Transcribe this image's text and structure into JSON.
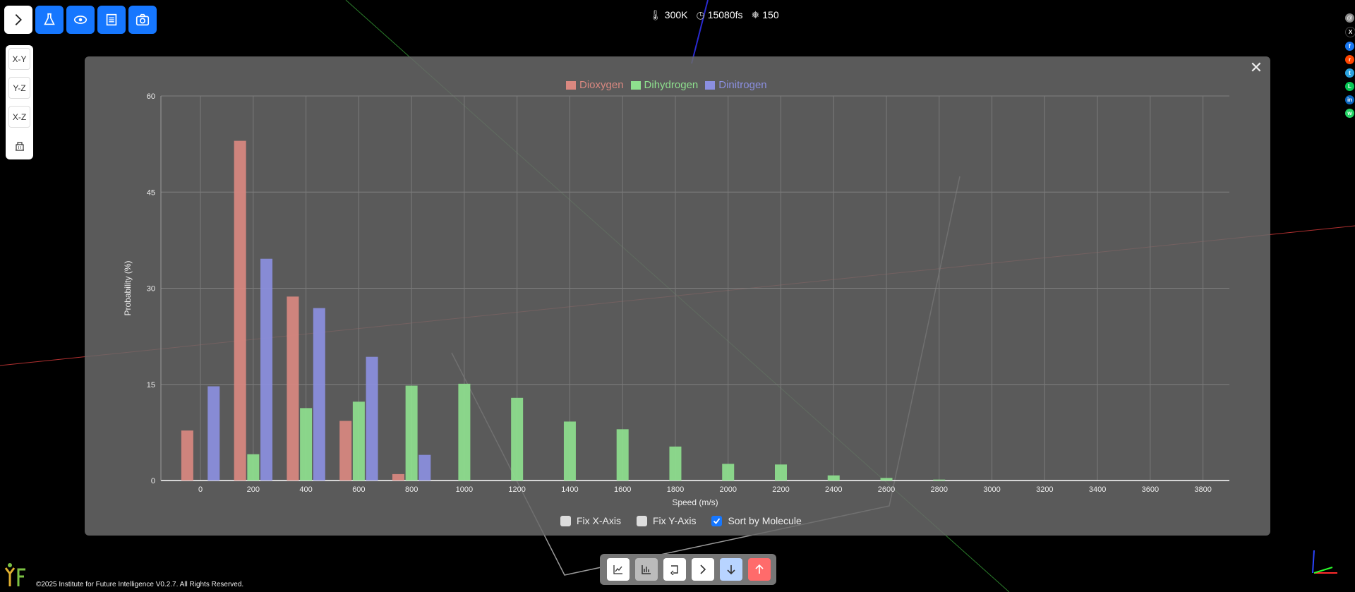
{
  "toolbar": {
    "buttons": [
      {
        "name": "toggle-menu",
        "icon": "chevron-right-icon"
      },
      {
        "name": "experiment",
        "icon": "flask-icon"
      },
      {
        "name": "visibility",
        "icon": "eye-icon"
      },
      {
        "name": "document",
        "icon": "document-icon"
      },
      {
        "name": "screenshot",
        "icon": "camera-icon"
      }
    ]
  },
  "views": [
    "X-Y",
    "Y-Z",
    "X-Z"
  ],
  "status": {
    "temperature": "300K",
    "time": "15080fs",
    "count": "150"
  },
  "legend": [
    {
      "label": "Dioxygen",
      "color": "#d98880"
    },
    {
      "label": "Dihydrogen",
      "color": "#8ee08e"
    },
    {
      "label": "Dinitrogen",
      "color": "#8b8fe0"
    }
  ],
  "chart_data": {
    "type": "bar",
    "xlabel": "Speed (m/s)",
    "ylabel": "Probability (%)",
    "ylim": [
      0,
      60
    ],
    "yticks": [
      0,
      15,
      30,
      45,
      60
    ],
    "xticks": [
      0,
      200,
      400,
      600,
      800,
      1000,
      1200,
      1400,
      1600,
      1800,
      2000,
      2200,
      2400,
      2600,
      2800,
      3000,
      3200,
      3400,
      3600,
      3800
    ],
    "series": [
      {
        "name": "Dioxygen",
        "color": "#d98880",
        "points": [
          {
            "x": -50,
            "y": 7.8
          },
          {
            "x": 150,
            "y": 53
          },
          {
            "x": 350,
            "y": 28.7
          },
          {
            "x": 550,
            "y": 9.3
          },
          {
            "x": 750,
            "y": 1
          }
        ]
      },
      {
        "name": "Dihydrogen",
        "color": "#8ee08e",
        "points": [
          {
            "x": 200,
            "y": 4.1
          },
          {
            "x": 400,
            "y": 11.3
          },
          {
            "x": 600,
            "y": 12.3
          },
          {
            "x": 800,
            "y": 14.8
          },
          {
            "x": 1000,
            "y": 15.1
          },
          {
            "x": 1200,
            "y": 12.9
          },
          {
            "x": 1400,
            "y": 9.2
          },
          {
            "x": 1600,
            "y": 8
          },
          {
            "x": 1800,
            "y": 5.3
          },
          {
            "x": 2000,
            "y": 2.6
          },
          {
            "x": 2200,
            "y": 2.5
          },
          {
            "x": 2400,
            "y": 0.8
          },
          {
            "x": 2600,
            "y": 0.4
          },
          {
            "x": 2800,
            "y": 0.15
          }
        ]
      },
      {
        "name": "Dinitrogen",
        "color": "#8b8fe0",
        "points": [
          {
            "x": 50,
            "y": 14.7
          },
          {
            "x": 250,
            "y": 34.6
          },
          {
            "x": 450,
            "y": 26.9
          },
          {
            "x": 650,
            "y": 19.3
          },
          {
            "x": 850,
            "y": 4
          }
        ]
      }
    ]
  },
  "checkboxes": [
    {
      "label": "Fix X-Axis",
      "checked": false
    },
    {
      "label": "Fix Y-Axis",
      "checked": false
    },
    {
      "label": "Sort by Molecule",
      "checked": true
    }
  ],
  "bottom_toolbar": [
    {
      "name": "line-chart",
      "icon": "line-chart-icon"
    },
    {
      "name": "bar-chart",
      "icon": "bar-chart-icon"
    },
    {
      "name": "reset",
      "icon": "reset-icon"
    },
    {
      "name": "play",
      "icon": "play-icon"
    },
    {
      "name": "cool",
      "icon": "arrow-down-icon"
    },
    {
      "name": "heat",
      "icon": "arrow-up-icon"
    }
  ],
  "footer": "©2025 Institute for Future Intelligence V0.2.7. All Rights Reserved."
}
